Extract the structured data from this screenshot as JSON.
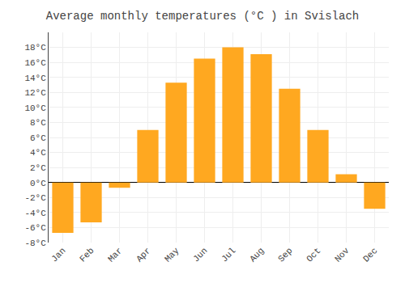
{
  "chart_data": {
    "type": "bar",
    "title": "Average monthly temperatures (°C ) in Svislach",
    "categories": [
      "Jan",
      "Feb",
      "Mar",
      "Apr",
      "May",
      "Jun",
      "Jul",
      "Aug",
      "Sep",
      "Oct",
      "Nov",
      "Dec"
    ],
    "values": [
      -6.7,
      -5.3,
      -0.7,
      7.0,
      13.3,
      16.5,
      18.0,
      17.1,
      12.5,
      7.0,
      1.1,
      -3.5
    ],
    "color": "#FFA820",
    "ylim": [
      -8,
      20
    ],
    "yticks": [
      {
        "value": -8,
        "label": "-8°C"
      },
      {
        "value": -6,
        "label": "-6°C"
      },
      {
        "value": -4,
        "label": "-4°C"
      },
      {
        "value": -2,
        "label": "-2°C"
      },
      {
        "value": 0,
        "label": "0°C"
      },
      {
        "value": 2,
        "label": "2°C"
      },
      {
        "value": 4,
        "label": "4°C"
      },
      {
        "value": 6,
        "label": "6°C"
      },
      {
        "value": 8,
        "label": "8°C"
      },
      {
        "value": 10,
        "label": "10°C"
      },
      {
        "value": 12,
        "label": "12°C"
      },
      {
        "value": 14,
        "label": "14°C"
      },
      {
        "value": 16,
        "label": "16°C"
      },
      {
        "value": 18,
        "label": "18°C"
      }
    ],
    "grid": true
  }
}
